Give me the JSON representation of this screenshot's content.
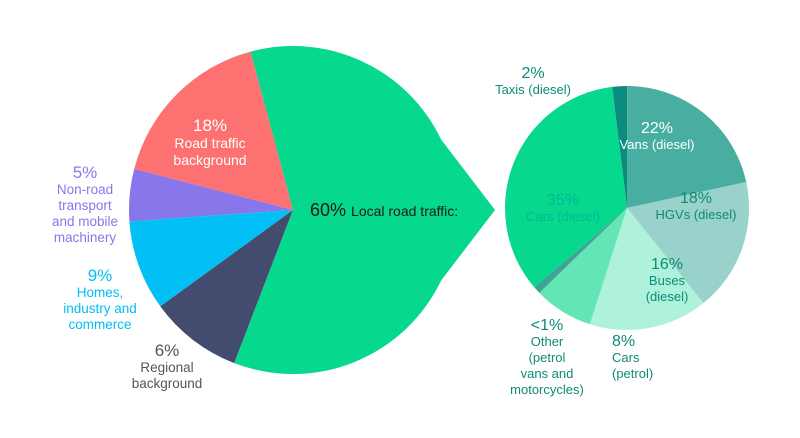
{
  "colors": {
    "local": "#06d88e",
    "road_bg": "#fd7171",
    "nonroad": "#8777ea",
    "homes": "#02bff5",
    "regional": "#434b6f",
    "taxis": "#0a8c7e",
    "vans": "#48aea2",
    "hgvs": "#98d2ca",
    "buses": "#aef2db",
    "cars_petrol": "#63e5b5",
    "other": "#3ea596",
    "cars_diesel": "#06d88e",
    "white": "#ffffff",
    "dark_text": "#1a1a1a",
    "light_text": "#00b894",
    "dark_green_text": "#0d8a78"
  },
  "chart_data": [
    {
      "type": "pie",
      "slices": [
        {
          "key": "local",
          "pct": "60%",
          "label": "Local road traffic:",
          "value": 60
        },
        {
          "key": "road_bg",
          "pct": "18%",
          "label": [
            "Road traffic",
            "background"
          ],
          "value": 18
        },
        {
          "key": "nonroad",
          "pct": "5%",
          "label": [
            "Non-road",
            "transport",
            "and mobile",
            "machinery"
          ],
          "value": 5
        },
        {
          "key": "homes",
          "pct": "9%",
          "label": [
            "Homes,",
            "industry and",
            "commerce"
          ],
          "value": 9
        },
        {
          "key": "regional",
          "pct": "6%",
          "label": [
            "Regional",
            "background"
          ],
          "value": 6
        }
      ]
    },
    {
      "type": "pie",
      "slices": [
        {
          "key": "taxis",
          "pct": "2%",
          "label": [
            "Taxis (diesel)"
          ],
          "value": 2
        },
        {
          "key": "vans",
          "pct": "22%",
          "label": [
            "Vans (diesel)"
          ],
          "value": 22
        },
        {
          "key": "hgvs",
          "pct": "18%",
          "label": [
            "HGVs (diesel)"
          ],
          "value": 18
        },
        {
          "key": "buses",
          "pct": "16%",
          "label": [
            "Buses",
            "(diesel)"
          ],
          "value": 16
        },
        {
          "key": "cars_petrol",
          "pct": "8%",
          "label": [
            "Cars",
            "(petrol)"
          ],
          "value": 8
        },
        {
          "key": "other",
          "pct": "<1%",
          "label": [
            "Other",
            "(petrol",
            "vans and",
            "motorcycles)"
          ],
          "value": 1
        },
        {
          "key": "cars_diesel",
          "pct": "35%",
          "label": [
            "Cars (diesel)"
          ],
          "value": 35
        }
      ]
    }
  ]
}
